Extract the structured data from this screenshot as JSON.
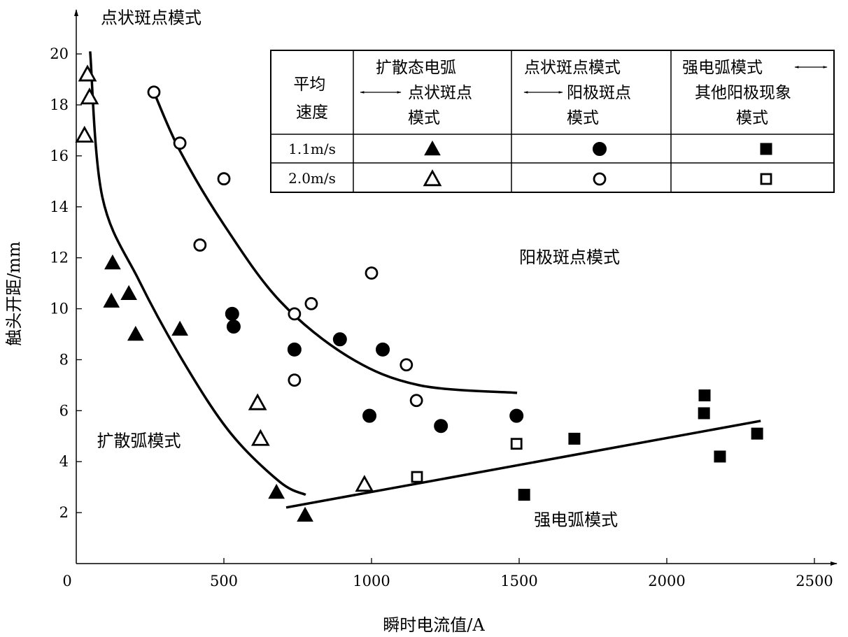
{
  "chart_data": {
    "type": "scatter",
    "title": "",
    "xlabel": "瞬时电流值/A",
    "ylabel": "触头开距/mm",
    "xlim": [
      0,
      2500
    ],
    "ylim": [
      0,
      20
    ],
    "xticks": [
      "0",
      "500",
      "1000",
      "1500",
      "2000",
      "2500"
    ],
    "yticks": [
      "2",
      "4",
      "6",
      "8",
      "10",
      "12",
      "14",
      "16",
      "18",
      "20"
    ],
    "xtick_values": [
      0,
      500,
      1000,
      1500,
      2000,
      2500
    ],
    "ytick_values": [
      2,
      4,
      6,
      8,
      10,
      12,
      14,
      16,
      18,
      20
    ],
    "grid": false,
    "series": [
      {
        "name": "1.1m/s 扩散态电弧↔点状斑点模式",
        "marker": "triangle-filled",
        "points": [
          [
            123,
            11.8
          ],
          [
            119,
            10.3
          ],
          [
            178,
            10.6
          ],
          [
            201,
            9.0
          ],
          [
            351,
            9.2
          ],
          [
            678,
            2.8
          ],
          [
            775,
            1.9
          ]
        ]
      },
      {
        "name": "2.0m/s 扩散态电弧↔点状斑点模式",
        "marker": "triangle-open",
        "points": [
          [
            38,
            19.2
          ],
          [
            45,
            18.3
          ],
          [
            28,
            16.8
          ],
          [
            614,
            6.3
          ],
          [
            624,
            4.9
          ],
          [
            976,
            3.1
          ]
        ]
      },
      {
        "name": "1.1m/s 点状斑点模式↔阳极斑点模式",
        "marker": "circle-filled",
        "points": [
          [
            528,
            9.8
          ],
          [
            533,
            9.3
          ],
          [
            739,
            8.4
          ],
          [
            893,
            8.8
          ],
          [
            1038,
            8.4
          ],
          [
            993,
            5.8
          ],
          [
            1235,
            5.4
          ],
          [
            1491,
            5.8
          ]
        ]
      },
      {
        "name": "2.0m/s 点状斑点模式↔阳极斑点模式",
        "marker": "circle-open",
        "points": [
          [
            263,
            18.5
          ],
          [
            351,
            16.5
          ],
          [
            500,
            15.1
          ],
          [
            419,
            12.5
          ],
          [
            1000,
            11.4
          ],
          [
            796,
            10.2
          ],
          [
            739,
            9.8
          ],
          [
            739,
            7.2
          ],
          [
            1118,
            7.8
          ],
          [
            1152,
            6.4
          ]
        ]
      },
      {
        "name": "1.1m/s 强电弧模式↔其他阳极现象模式",
        "marker": "square-filled",
        "points": [
          [
            1517,
            2.7
          ],
          [
            1687,
            4.9
          ],
          [
            2128,
            6.6
          ],
          [
            2126,
            5.9
          ],
          [
            2180,
            4.2
          ],
          [
            2306,
            5.1
          ]
        ]
      },
      {
        "name": "2.0m/s 强电弧模式↔其他阳极现象模式",
        "marker": "square-open",
        "points": [
          [
            1154,
            3.4
          ],
          [
            1491,
            4.7
          ]
        ]
      }
    ],
    "curves": [
      {
        "name": "boundary-diffuse-spot",
        "points": [
          [
            47,
            20.1
          ],
          [
            88,
            14.4
          ],
          [
            213,
            11.1
          ],
          [
            369,
            7.8
          ],
          [
            524,
            5.1
          ],
          [
            690,
            3.2
          ],
          [
            777,
            2.7
          ]
        ]
      },
      {
        "name": "boundary-spot-anode",
        "points": [
          [
            263,
            18.5
          ],
          [
            351,
            16.2
          ],
          [
            500,
            13.3
          ],
          [
            690,
            10.3
          ],
          [
            924,
            8.1
          ],
          [
            1161,
            7.0
          ],
          [
            1493,
            6.7
          ]
        ]
      },
      {
        "name": "boundary-strong-arc",
        "points": [
          [
            711,
            2.2
          ],
          [
            2318,
            5.6
          ]
        ]
      }
    ],
    "annotations": [
      {
        "text": "点状斑点模式",
        "at": [
          0,
          21.2
        ]
      },
      {
        "text": "阳极斑点模式",
        "at": [
          1500,
          11.8
        ]
      },
      {
        "text": "扩散弧模式",
        "at": [
          70,
          4.6
        ]
      },
      {
        "text": "强电弧模式",
        "at": [
          1550,
          1.5
        ]
      }
    ],
    "legend": {
      "placement": "top-right",
      "header": {
        "col0": [
          "平均",
          "速度"
        ],
        "col1": [
          "扩散态电弧",
          "点状斑点",
          "模式"
        ],
        "col2": [
          "点状斑点模式",
          "阳极斑点",
          "模式"
        ],
        "col3": [
          "强电弧模式",
          "其他阳极现象",
          "模式"
        ]
      },
      "rows": [
        {
          "speed": "1.1m/s",
          "markers": [
            "triangle-filled",
            "circle-filled",
            "square-filled"
          ]
        },
        {
          "speed": "2.0m/s",
          "markers": [
            "triangle-open",
            "circle-open",
            "square-open"
          ]
        }
      ]
    }
  }
}
